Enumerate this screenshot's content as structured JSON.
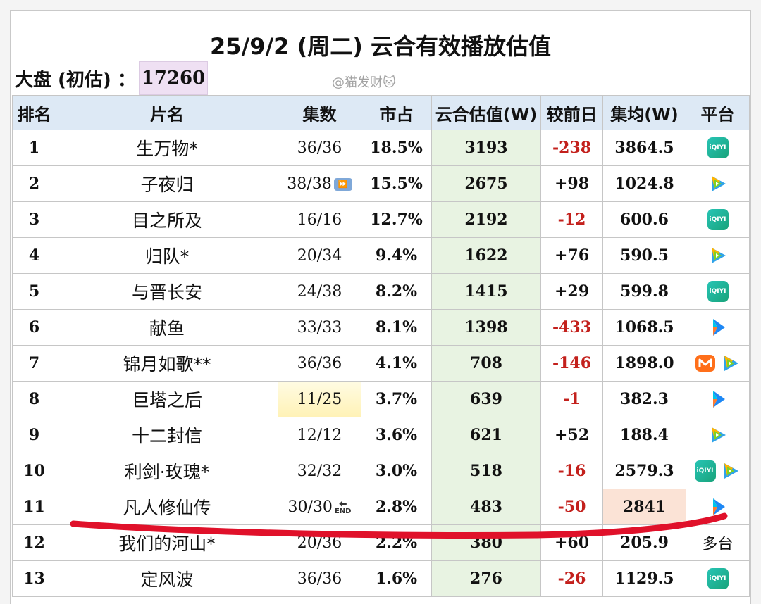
{
  "title": "25/9/2 (周二) 云合有效播放估值",
  "market": {
    "label": "大盘 (初估) ：",
    "value": "17260"
  },
  "watermark": "@猫发财🐱",
  "headers": [
    "排名",
    "片名",
    "集数",
    "市占",
    "云合估值(W)",
    "较前日",
    "集均(W)",
    "平台"
  ],
  "rows": [
    {
      "rank": "1",
      "name": "生万物*",
      "eps": "36/36",
      "share": "18.5%",
      "value": "3193",
      "diff": "-238",
      "avg": "3864.5",
      "platforms": [
        "iqiyi"
      ]
    },
    {
      "rank": "2",
      "name": "子夜归",
      "eps": "38/38",
      "eps_icon": "⏩",
      "share": "15.5%",
      "value": "2675",
      "diff": "+98",
      "avg": "1024.8",
      "platforms": [
        "tencent"
      ]
    },
    {
      "rank": "3",
      "name": "目之所及",
      "eps": "16/16",
      "share": "12.7%",
      "value": "2192",
      "diff": "-12",
      "avg": "600.6",
      "platforms": [
        "iqiyi"
      ]
    },
    {
      "rank": "4",
      "name": "归队*",
      "eps": "20/34",
      "share": "9.4%",
      "value": "1622",
      "diff": "+76",
      "avg": "590.5",
      "platforms": [
        "tencent"
      ]
    },
    {
      "rank": "5",
      "name": "与晋长安",
      "eps": "24/38",
      "share": "8.2%",
      "value": "1415",
      "diff": "+29",
      "avg": "599.8",
      "platforms": [
        "iqiyi"
      ]
    },
    {
      "rank": "6",
      "name": "献鱼",
      "eps": "33/33",
      "share": "8.1%",
      "value": "1398",
      "diff": "-433",
      "avg": "1068.5",
      "platforms": [
        "youku"
      ]
    },
    {
      "rank": "7",
      "name": "锦月如歌**",
      "eps": "36/36",
      "share": "4.1%",
      "value": "708",
      "diff": "-146",
      "avg": "1898.0",
      "platforms": [
        "mango",
        "tencent"
      ]
    },
    {
      "rank": "8",
      "name": "巨塔之后",
      "eps": "11/25",
      "share": "3.7%",
      "value": "639",
      "diff": "-1",
      "avg": "382.3",
      "platforms": [
        "youku"
      ],
      "eps_highlight": true
    },
    {
      "rank": "9",
      "name": "十二封信",
      "eps": "12/12",
      "share": "3.6%",
      "value": "621",
      "diff": "+52",
      "avg": "188.4",
      "platforms": [
        "tencent"
      ]
    },
    {
      "rank": "10",
      "name": "利剑·玫瑰*",
      "eps": "32/32",
      "share": "3.0%",
      "value": "518",
      "diff": "-16",
      "avg": "2579.3",
      "platforms": [
        "iqiyi",
        "tencent"
      ]
    },
    {
      "rank": "11",
      "name": "凡人修仙传",
      "eps": "30/30",
      "eps_icon": "END",
      "share": "2.8%",
      "value": "483",
      "diff": "-50",
      "avg": "2841",
      "platforms": [
        "youku"
      ],
      "avg_highlight": true
    },
    {
      "rank": "12",
      "name": "我们的河山*",
      "eps": "20/36",
      "share": "2.2%",
      "value": "380",
      "diff": "+60",
      "avg": "205.9",
      "platforms": [],
      "platform_text": "多台"
    },
    {
      "rank": "13",
      "name": "定风波",
      "eps": "36/36",
      "share": "1.6%",
      "value": "276",
      "diff": "-26",
      "avg": "1129.5",
      "platforms": [
        "iqiyi"
      ]
    }
  ],
  "iqiyi_text": "iQIYI",
  "colors": {
    "header_bg": "#dde9f5",
    "value_bg": "#e8f3e2",
    "negative": "#c3201c",
    "marker_line": "#e0112a",
    "market_bg": "#efe0f3"
  }
}
